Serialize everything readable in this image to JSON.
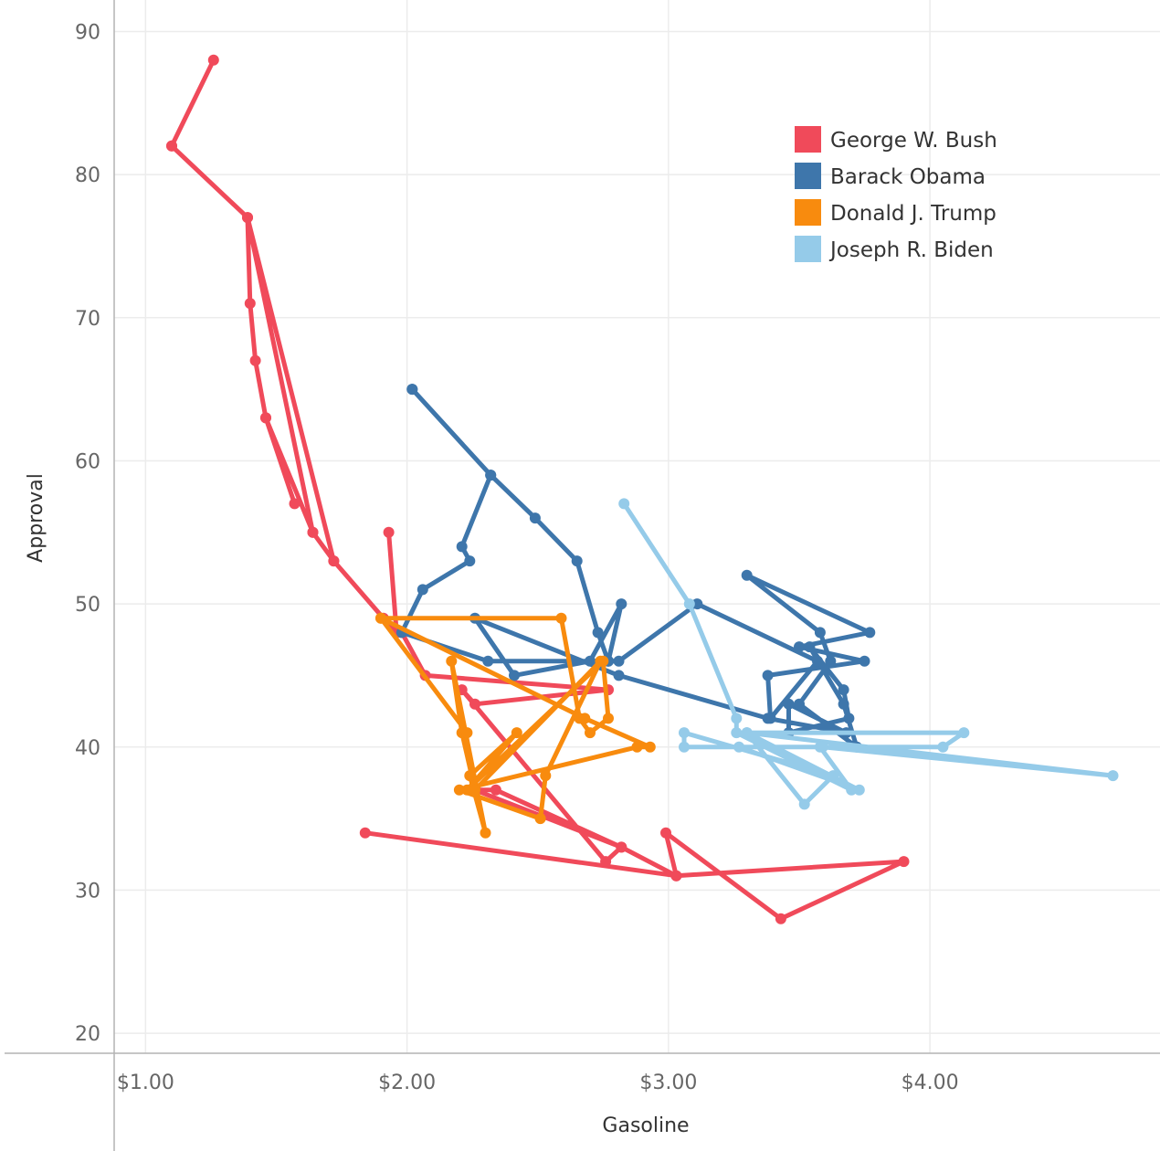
{
  "chart_data": {
    "type": "line",
    "title": "",
    "xlabel": "Gasoline",
    "ylabel": "Approval",
    "xlim": [
      0.88,
      4.88
    ],
    "ylim": [
      18.6,
      92.2
    ],
    "x_ticks": [
      1.0,
      2.0,
      3.0,
      4.0
    ],
    "x_tick_labels": [
      "$1.00",
      "$2.00",
      "$3.00",
      "$4.00"
    ],
    "y_ticks": [
      20,
      30,
      40,
      50,
      60,
      70,
      80,
      90
    ],
    "y_tick_labels": [
      "20",
      "30",
      "40",
      "50",
      "60",
      "70",
      "80",
      "90"
    ],
    "grid": true,
    "legend_position": "top-right",
    "series": [
      {
        "name": "George W. Bush",
        "color": "#f04a5a",
        "points": [
          [
            1.1,
            82
          ],
          [
            1.26,
            88
          ],
          [
            1.1,
            82
          ],
          [
            1.39,
            77
          ],
          [
            1.4,
            71
          ],
          [
            1.42,
            67
          ],
          [
            1.46,
            63
          ],
          [
            1.57,
            57
          ],
          [
            1.46,
            63
          ],
          [
            1.64,
            55
          ],
          [
            1.72,
            53
          ],
          [
            1.39,
            77
          ],
          [
            1.64,
            55
          ],
          [
            1.72,
            53
          ],
          [
            1.91,
            49
          ],
          [
            1.96,
            48
          ],
          [
            1.93,
            55
          ],
          [
            1.96,
            48
          ],
          [
            1.98,
            48
          ],
          [
            2.07,
            45
          ],
          [
            2.77,
            44
          ],
          [
            2.26,
            43
          ],
          [
            2.21,
            44
          ],
          [
            2.76,
            32
          ],
          [
            2.82,
            33
          ],
          [
            2.26,
            37
          ],
          [
            2.34,
            37
          ],
          [
            2.82,
            33
          ],
          [
            3.03,
            31
          ],
          [
            2.99,
            34
          ],
          [
            3.43,
            28
          ],
          [
            3.9,
            32
          ],
          [
            3.03,
            31
          ],
          [
            1.84,
            34
          ]
        ]
      },
      {
        "name": "Barack Obama",
        "color": "#3e76ab",
        "points": [
          [
            2.02,
            65
          ],
          [
            2.32,
            59
          ],
          [
            2.21,
            54
          ],
          [
            2.24,
            53
          ],
          [
            2.06,
            51
          ],
          [
            1.98,
            48
          ],
          [
            2.31,
            46
          ],
          [
            2.77,
            46
          ],
          [
            2.81,
            46
          ],
          [
            3.11,
            50
          ],
          [
            3.57,
            46
          ],
          [
            3.39,
            42
          ],
          [
            3.38,
            45
          ],
          [
            3.75,
            46
          ],
          [
            3.5,
            47
          ],
          [
            3.77,
            48
          ],
          [
            3.3,
            52
          ],
          [
            3.58,
            48
          ],
          [
            3.62,
            46
          ],
          [
            3.5,
            43
          ],
          [
            3.72,
            40
          ],
          [
            3.67,
            43
          ],
          [
            3.54,
            47
          ],
          [
            3.67,
            44
          ],
          [
            3.69,
            42
          ],
          [
            3.46,
            41
          ],
          [
            3.46,
            43
          ],
          [
            3.68,
            41
          ],
          [
            3.38,
            42
          ],
          [
            2.81,
            45
          ],
          [
            2.26,
            49
          ],
          [
            2.41,
            45
          ],
          [
            2.7,
            46
          ],
          [
            2.82,
            50
          ],
          [
            2.77,
            46
          ],
          [
            2.73,
            48
          ],
          [
            2.65,
            53
          ],
          [
            2.49,
            56
          ],
          [
            2.32,
            59
          ],
          [
            2.02,
            65
          ]
        ]
      },
      {
        "name": "Donald J. Trump",
        "color": "#f88b0e",
        "points": [
          [
            1.9,
            49
          ],
          [
            2.59,
            49
          ],
          [
            2.66,
            42
          ],
          [
            2.7,
            41
          ],
          [
            2.77,
            42
          ],
          [
            2.75,
            46
          ],
          [
            2.23,
            37
          ],
          [
            2.42,
            41
          ],
          [
            2.24,
            38
          ],
          [
            2.3,
            34
          ],
          [
            2.17,
            46
          ],
          [
            2.21,
            41
          ],
          [
            2.26,
            37
          ],
          [
            2.74,
            46
          ],
          [
            2.53,
            38
          ],
          [
            2.51,
            35
          ],
          [
            2.2,
            37
          ],
          [
            2.88,
            40
          ],
          [
            2.93,
            40
          ],
          [
            2.68,
            42
          ],
          [
            1.9,
            49
          ],
          [
            2.23,
            41
          ]
        ]
      },
      {
        "name": "Joseph R. Biden",
        "color": "#95cbe9",
        "points": [
          [
            2.83,
            57
          ],
          [
            3.08,
            50
          ],
          [
            3.26,
            42
          ],
          [
            3.26,
            41
          ],
          [
            3.7,
            37
          ],
          [
            3.58,
            40
          ],
          [
            3.06,
            40
          ],
          [
            3.06,
            41
          ],
          [
            3.63,
            38
          ],
          [
            3.52,
            36
          ],
          [
            3.3,
            41
          ],
          [
            3.73,
            37
          ],
          [
            3.27,
            40
          ],
          [
            4.05,
            40
          ],
          [
            4.13,
            41
          ],
          [
            3.3,
            41
          ],
          [
            4.7,
            38
          ],
          [
            3.59,
            40
          ]
        ]
      }
    ]
  }
}
